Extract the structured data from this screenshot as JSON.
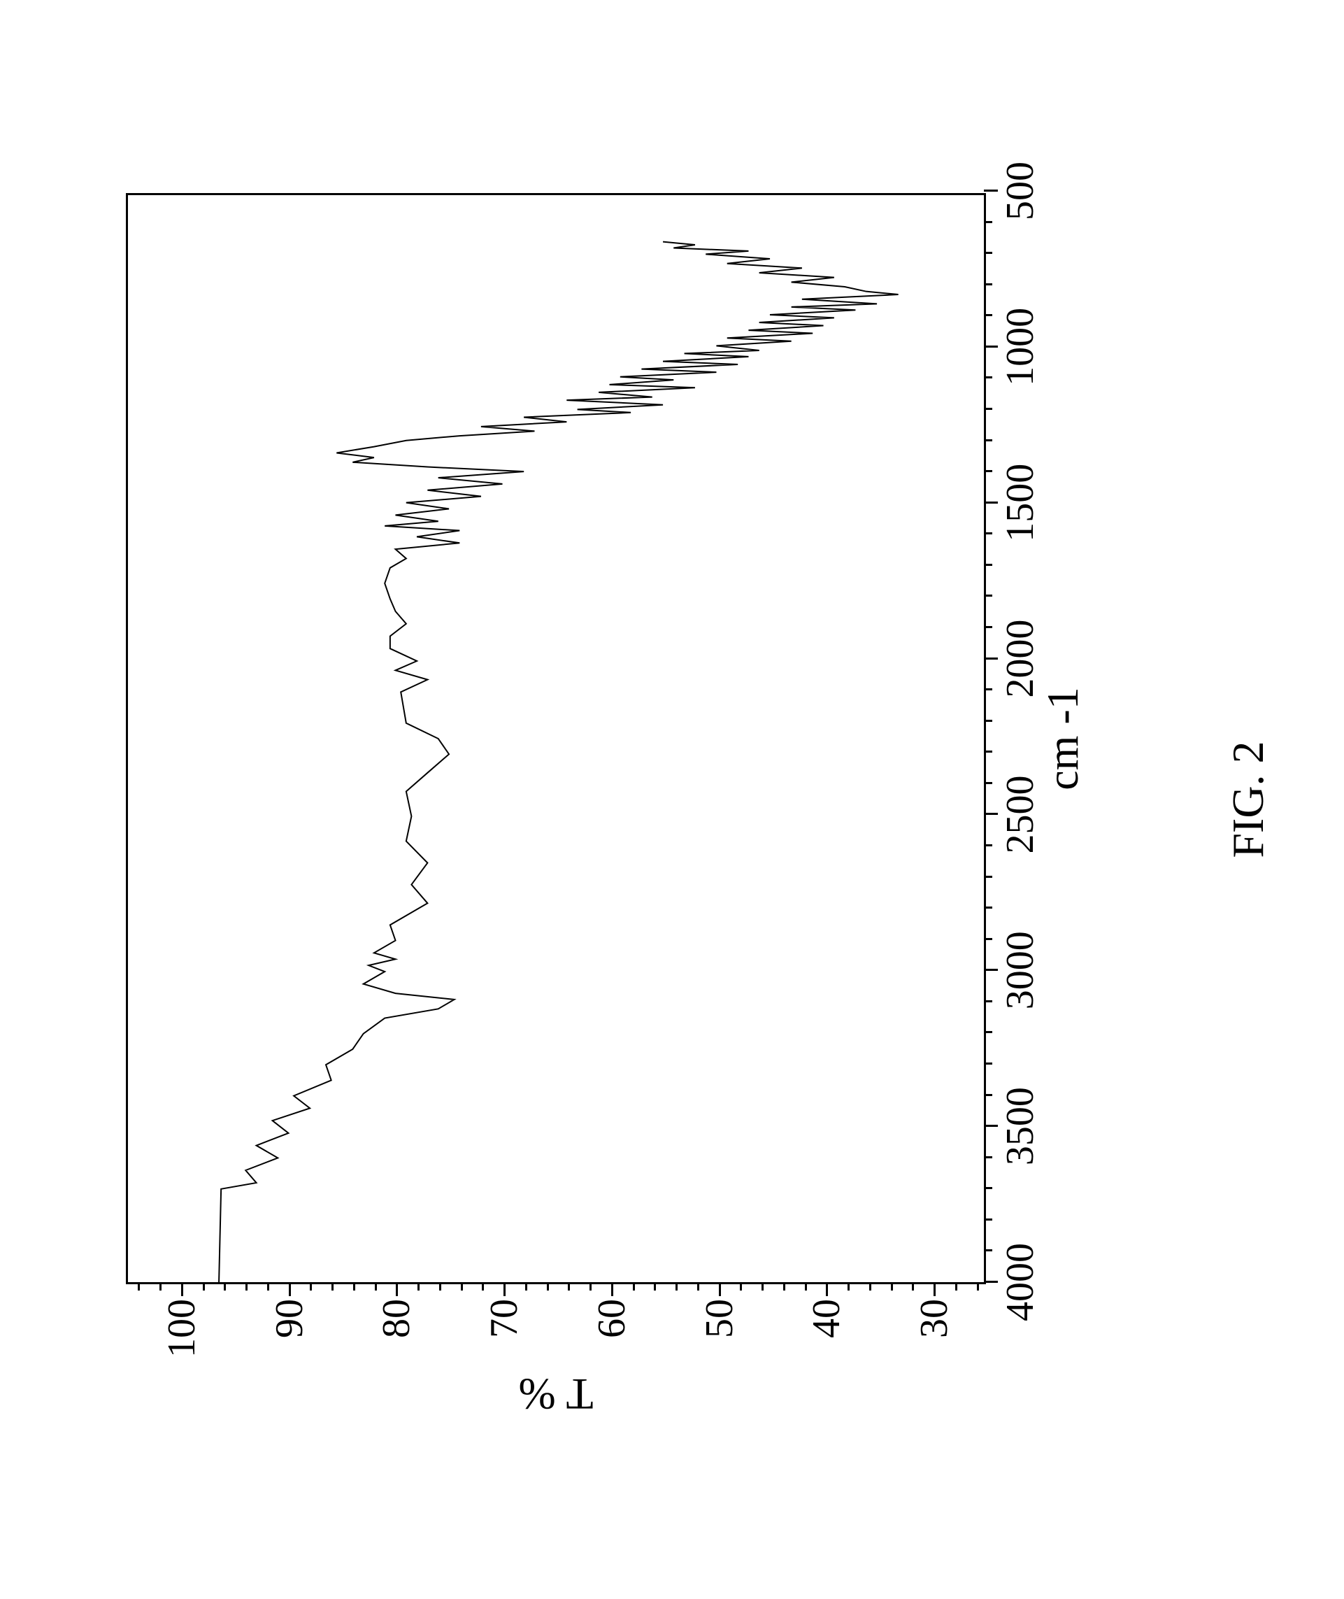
{
  "figure": {
    "caption": "FIG. 2",
    "caption_fontsize": 64,
    "background_color": "#ffffff"
  },
  "spectrum": {
    "type": "line",
    "x_reversed": true,
    "xlim": [
      4000,
      500
    ],
    "ylim": [
      25,
      105
    ],
    "x_axis_label": "cm -1",
    "y_axis_label": "T %",
    "axis_label_fontsize": 64,
    "tick_label_fontsize": 56,
    "x_major_ticks": [
      4000,
      3500,
      3000,
      2500,
      2000,
      1500,
      1000,
      500
    ],
    "x_minor_step": 100,
    "y_major_ticks": [
      30,
      40,
      50,
      60,
      70,
      80,
      90,
      100
    ],
    "y_minor_step": 2,
    "line_color": "#000000",
    "line_width": 2,
    "border_color": "#000000",
    "grid": false,
    "data": [
      {
        "x": 4000,
        "y": 96.5
      },
      {
        "x": 3700,
        "y": 96.3
      },
      {
        "x": 3680,
        "y": 93.0
      },
      {
        "x": 3640,
        "y": 94.0
      },
      {
        "x": 3600,
        "y": 91.0
      },
      {
        "x": 3560,
        "y": 93.0
      },
      {
        "x": 3520,
        "y": 90.0
      },
      {
        "x": 3480,
        "y": 91.5
      },
      {
        "x": 3440,
        "y": 88.0
      },
      {
        "x": 3400,
        "y": 89.5
      },
      {
        "x": 3350,
        "y": 86.0
      },
      {
        "x": 3300,
        "y": 86.5
      },
      {
        "x": 3250,
        "y": 84.0
      },
      {
        "x": 3200,
        "y": 83.0
      },
      {
        "x": 3150,
        "y": 81.0
      },
      {
        "x": 3120,
        "y": 76.0
      },
      {
        "x": 3090,
        "y": 74.5
      },
      {
        "x": 3070,
        "y": 80.0
      },
      {
        "x": 3040,
        "y": 83.0
      },
      {
        "x": 3000,
        "y": 81.0
      },
      {
        "x": 2980,
        "y": 82.5
      },
      {
        "x": 2960,
        "y": 80.0
      },
      {
        "x": 2940,
        "y": 82.0
      },
      {
        "x": 2900,
        "y": 80.0
      },
      {
        "x": 2850,
        "y": 80.5
      },
      {
        "x": 2780,
        "y": 77.0
      },
      {
        "x": 2720,
        "y": 78.5
      },
      {
        "x": 2650,
        "y": 77.0
      },
      {
        "x": 2580,
        "y": 79.0
      },
      {
        "x": 2500,
        "y": 78.5
      },
      {
        "x": 2420,
        "y": 79.0
      },
      {
        "x": 2360,
        "y": 77.0
      },
      {
        "x": 2300,
        "y": 75.0
      },
      {
        "x": 2250,
        "y": 76.0
      },
      {
        "x": 2200,
        "y": 79.0
      },
      {
        "x": 2100,
        "y": 79.5
      },
      {
        "x": 2060,
        "y": 77.0
      },
      {
        "x": 2030,
        "y": 80.0
      },
      {
        "x": 2000,
        "y": 78.0
      },
      {
        "x": 1960,
        "y": 80.5
      },
      {
        "x": 1920,
        "y": 80.5
      },
      {
        "x": 1880,
        "y": 79.0
      },
      {
        "x": 1840,
        "y": 80.0
      },
      {
        "x": 1800,
        "y": 80.5
      },
      {
        "x": 1750,
        "y": 81.0
      },
      {
        "x": 1700,
        "y": 80.5
      },
      {
        "x": 1670,
        "y": 79.0
      },
      {
        "x": 1640,
        "y": 80.0
      },
      {
        "x": 1620,
        "y": 74.0
      },
      {
        "x": 1600,
        "y": 78.0
      },
      {
        "x": 1580,
        "y": 74.0
      },
      {
        "x": 1565,
        "y": 81.0
      },
      {
        "x": 1550,
        "y": 76.0
      },
      {
        "x": 1530,
        "y": 80.0
      },
      {
        "x": 1510,
        "y": 75.0
      },
      {
        "x": 1490,
        "y": 79.0
      },
      {
        "x": 1470,
        "y": 72.0
      },
      {
        "x": 1450,
        "y": 77.0
      },
      {
        "x": 1430,
        "y": 70.0
      },
      {
        "x": 1410,
        "y": 76.0
      },
      {
        "x": 1390,
        "y": 68.0
      },
      {
        "x": 1375,
        "y": 77.0
      },
      {
        "x": 1360,
        "y": 84.0
      },
      {
        "x": 1345,
        "y": 82.0
      },
      {
        "x": 1330,
        "y": 85.5
      },
      {
        "x": 1310,
        "y": 82.0
      },
      {
        "x": 1290,
        "y": 79.0
      },
      {
        "x": 1275,
        "y": 74.0
      },
      {
        "x": 1260,
        "y": 67.0
      },
      {
        "x": 1245,
        "y": 72.0
      },
      {
        "x": 1230,
        "y": 64.0
      },
      {
        "x": 1215,
        "y": 68.0
      },
      {
        "x": 1200,
        "y": 58.0
      },
      {
        "x": 1190,
        "y": 63.0
      },
      {
        "x": 1175,
        "y": 55.0
      },
      {
        "x": 1160,
        "y": 64.0
      },
      {
        "x": 1150,
        "y": 56.0
      },
      {
        "x": 1135,
        "y": 61.0
      },
      {
        "x": 1120,
        "y": 52.0
      },
      {
        "x": 1110,
        "y": 60.0
      },
      {
        "x": 1095,
        "y": 54.0
      },
      {
        "x": 1085,
        "y": 59.0
      },
      {
        "x": 1070,
        "y": 50.0
      },
      {
        "x": 1060,
        "y": 57.0
      },
      {
        "x": 1045,
        "y": 48.0
      },
      {
        "x": 1035,
        "y": 55.0
      },
      {
        "x": 1020,
        "y": 47.0
      },
      {
        "x": 1010,
        "y": 53.0
      },
      {
        "x": 1000,
        "y": 46.0
      },
      {
        "x": 985,
        "y": 50.0
      },
      {
        "x": 970,
        "y": 43.0
      },
      {
        "x": 960,
        "y": 49.0
      },
      {
        "x": 945,
        "y": 41.0
      },
      {
        "x": 935,
        "y": 47.0
      },
      {
        "x": 920,
        "y": 40.0
      },
      {
        "x": 910,
        "y": 46.0
      },
      {
        "x": 895,
        "y": 39.0
      },
      {
        "x": 885,
        "y": 45.0
      },
      {
        "x": 870,
        "y": 37.0
      },
      {
        "x": 860,
        "y": 43.0
      },
      {
        "x": 850,
        "y": 35.0
      },
      {
        "x": 835,
        "y": 42.0
      },
      {
        "x": 820,
        "y": 33.0
      },
      {
        "x": 810,
        "y": 36.0
      },
      {
        "x": 795,
        "y": 38.0
      },
      {
        "x": 780,
        "y": 43.0
      },
      {
        "x": 765,
        "y": 39.0
      },
      {
        "x": 750,
        "y": 46.0
      },
      {
        "x": 735,
        "y": 42.0
      },
      {
        "x": 720,
        "y": 49.0
      },
      {
        "x": 705,
        "y": 45.0
      },
      {
        "x": 690,
        "y": 51.0
      },
      {
        "x": 680,
        "y": 47.0
      },
      {
        "x": 670,
        "y": 54.0
      },
      {
        "x": 660,
        "y": 52.0
      },
      {
        "x": 650,
        "y": 55.0
      }
    ]
  }
}
